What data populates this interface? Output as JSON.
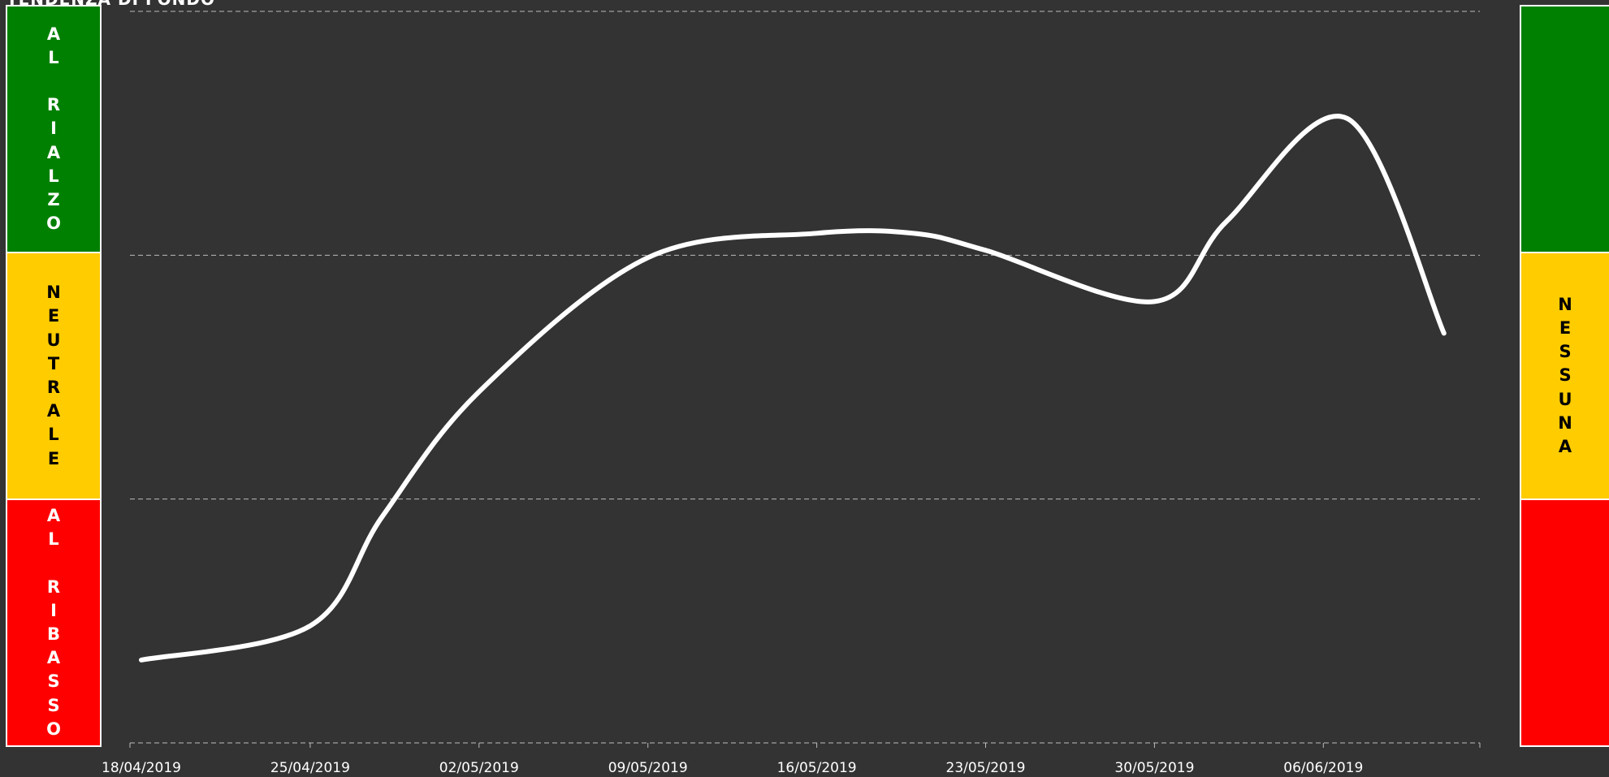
{
  "title": "TENDENZA DI FONDO",
  "colors": {
    "background": "#333333",
    "up": "#008000",
    "neutral": "#FFCC00",
    "down": "#FF0000",
    "line": "#FFFFFF",
    "grid": "#BBBBBB"
  },
  "left_panel": {
    "up_label": "AL RIALZO",
    "neutral_label": "NEUTRALE",
    "down_label": "AL RIBASSO"
  },
  "right_panel": {
    "up_label": "",
    "neutral_label": "NESSUNA",
    "down_label": ""
  },
  "chart_data": {
    "type": "line",
    "title": "TENDENZA DI FONDO",
    "xlabel": "",
    "ylabel": "",
    "x_ticks": [
      "18/04/2019",
      "25/04/2019",
      "02/05/2019",
      "09/05/2019",
      "16/05/2019",
      "23/05/2019",
      "30/05/2019",
      "06/06/2019"
    ],
    "ylim": [
      0,
      3
    ],
    "grid": true,
    "series": [
      {
        "values": [
          {
            "x": "18/04/2019",
            "y": 0.34
          },
          {
            "x": "25/04/2019",
            "y": 0.48
          },
          {
            "x": "28/04/2019",
            "y": 0.93
          },
          {
            "x": "02/05/2019",
            "y": 1.44
          },
          {
            "x": "09/05/2019",
            "y": 1.99
          },
          {
            "x": "16/05/2019",
            "y": 2.09
          },
          {
            "x": "20/05/2019",
            "y": 2.09
          },
          {
            "x": "23/05/2019",
            "y": 2.02
          },
          {
            "x": "30/05/2019",
            "y": 1.81
          },
          {
            "x": "02/06/2019",
            "y": 2.14
          },
          {
            "x": "07/06/2019",
            "y": 2.56
          },
          {
            "x": "11/06/2019",
            "y": 1.68
          }
        ]
      }
    ]
  }
}
